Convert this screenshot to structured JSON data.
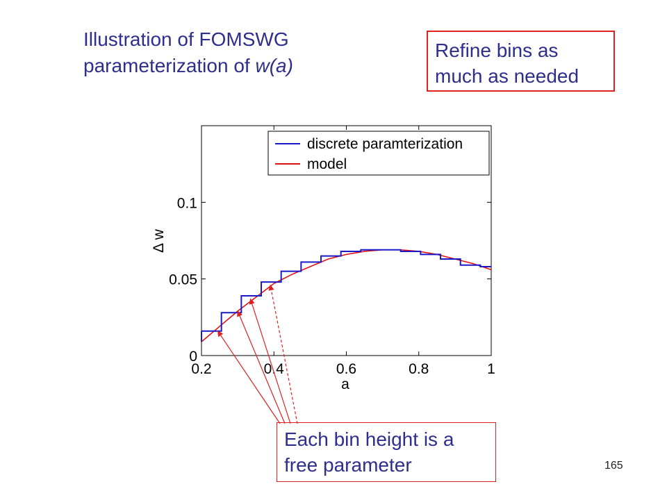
{
  "slide": {
    "title_line1": "Illustration of FOMSWG",
    "title_line2_prefix": "parameterization  of ",
    "title_line2_italic": "w(a)",
    "callout_top_line1": "Refine bins as",
    "callout_top_line2": "much as needed",
    "callout_bottom_line1": "Each bin height is a",
    "callout_bottom_line2": "free parameter",
    "page_number": "165"
  },
  "colors": {
    "title_text": "#2e2e8c",
    "callout_border": "#e02020",
    "arrow": "#e02020",
    "series_discrete": "#1a1ac8",
    "series_model": "#e01010"
  },
  "chart_data": {
    "type": "line",
    "xlabel": "a",
    "ylabel": "Δ w",
    "xlim": [
      0.2,
      1.0
    ],
    "ylim": [
      0,
      0.15
    ],
    "xticks": [
      0.2,
      0.4,
      0.6,
      0.8,
      1.0
    ],
    "xtick_labels": [
      "0.2",
      "0.4",
      "0.6",
      "0.8",
      "1"
    ],
    "yticks": [
      0,
      0.05,
      0.1
    ],
    "ytick_labels": [
      "0",
      "0.05",
      "0.1"
    ],
    "grid": false,
    "legend_position": "top-right",
    "series": [
      {
        "name": "discrete paramterization",
        "style": "step",
        "bin_edges": [
          0.2,
          0.255,
          0.31,
          0.365,
          0.42,
          0.475,
          0.53,
          0.585,
          0.64,
          0.695,
          0.75,
          0.805,
          0.86,
          0.915,
          0.97,
          1.0
        ],
        "values": [
          0.016,
          0.028,
          0.039,
          0.048,
          0.055,
          0.061,
          0.065,
          0.068,
          0.069,
          0.069,
          0.068,
          0.066,
          0.063,
          0.059,
          0.058
        ]
      },
      {
        "name": "model",
        "style": "line",
        "x": [
          0.2,
          0.25,
          0.3,
          0.35,
          0.4,
          0.45,
          0.5,
          0.55,
          0.6,
          0.65,
          0.7,
          0.75,
          0.8,
          0.85,
          0.9,
          0.95,
          1.0
        ],
        "values": [
          0.009,
          0.019,
          0.029,
          0.038,
          0.047,
          0.053,
          0.058,
          0.063,
          0.066,
          0.068,
          0.069,
          0.069,
          0.068,
          0.066,
          0.063,
          0.06,
          0.056
        ]
      }
    ],
    "annotation_arrows": [
      {
        "target": [
          0.245,
          0.016
        ],
        "dashed": false
      },
      {
        "target": [
          0.3,
          0.029
        ],
        "dashed": false
      },
      {
        "target": [
          0.335,
          0.037
        ],
        "dashed": false
      },
      {
        "target": [
          0.39,
          0.046
        ],
        "dashed": true
      }
    ]
  }
}
